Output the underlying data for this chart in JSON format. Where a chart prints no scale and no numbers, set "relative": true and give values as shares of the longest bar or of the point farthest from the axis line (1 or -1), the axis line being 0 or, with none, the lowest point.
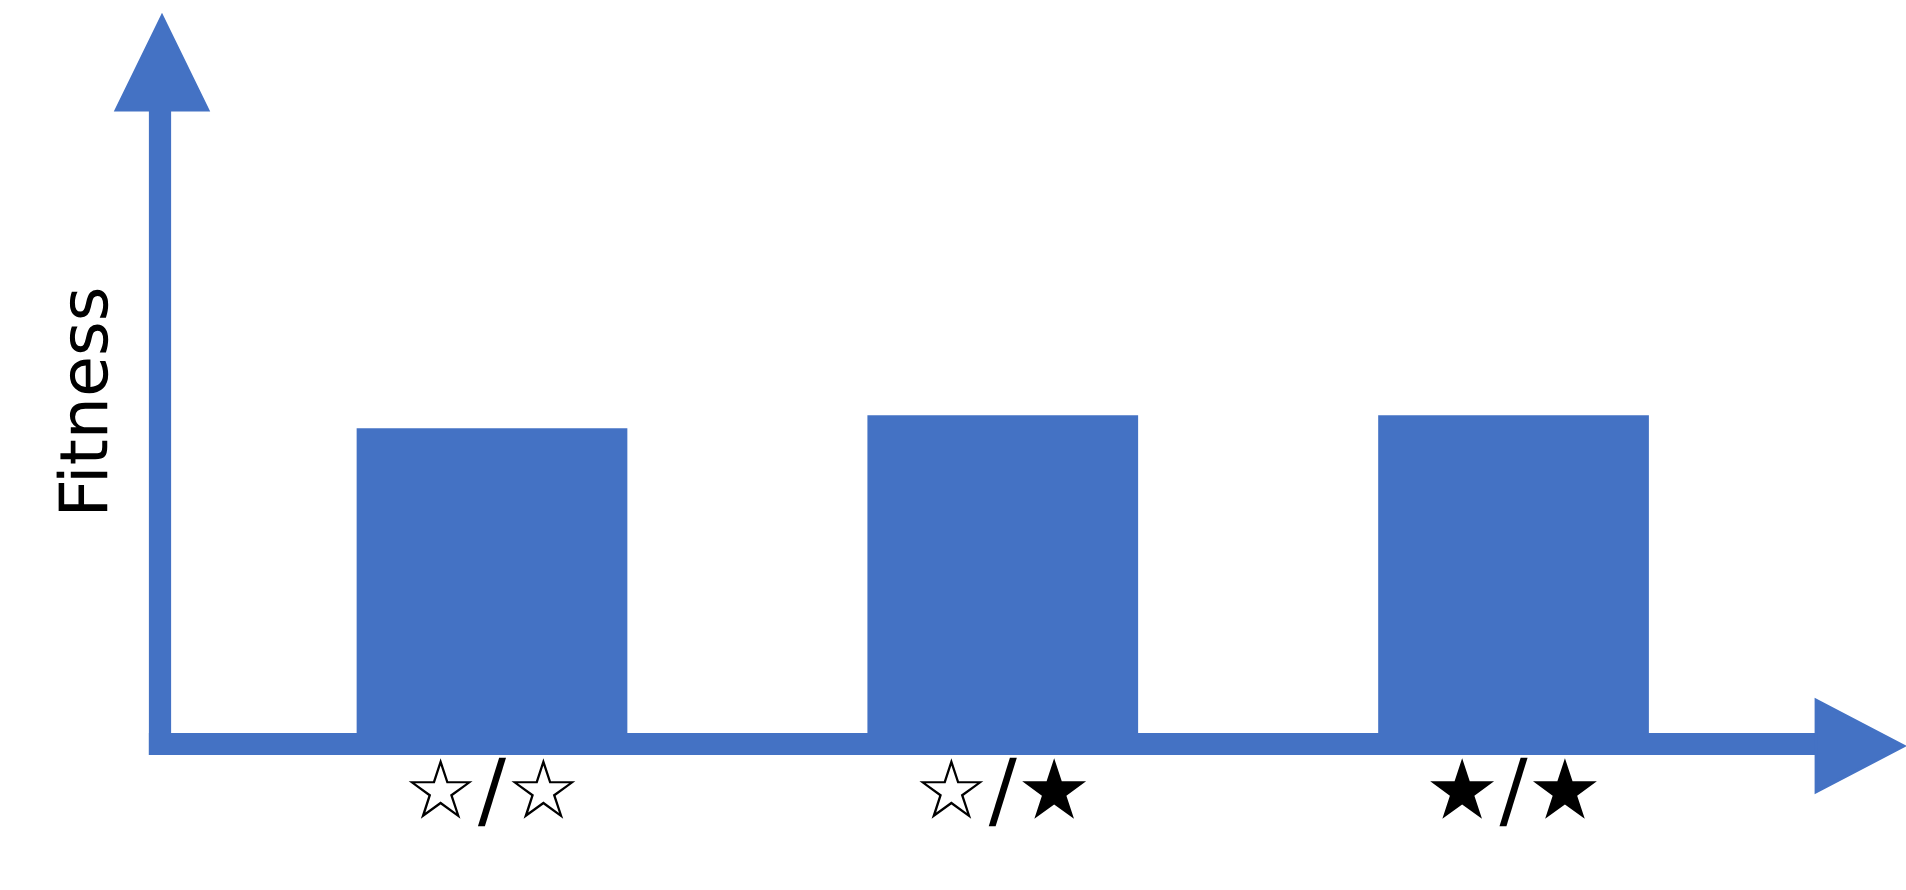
{
  "chart_data": {
    "type": "bar",
    "relative": true,
    "ylabel": "Fitness",
    "categories": [
      "☆/☆",
      "☆/★",
      "★/★"
    ],
    "values": [
      0.96,
      1,
      1
    ],
    "color": "#4472c4",
    "grid": false,
    "legend": false
  }
}
